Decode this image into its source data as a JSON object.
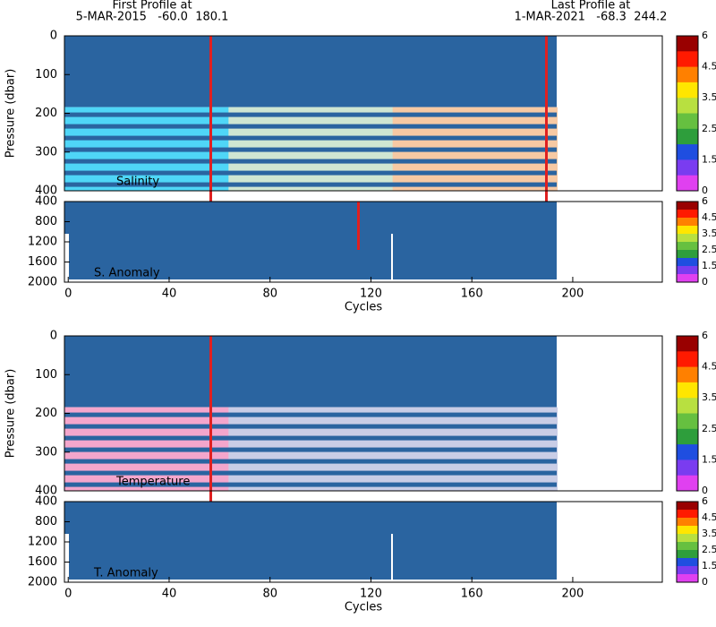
{
  "header": {
    "first_label": "First Profile at",
    "first_info": "5-MAR-2015   -60.0  180.1",
    "last_label": "Last Profile at",
    "last_info": "1-MAR-2021   -68.3  244.2"
  },
  "chart_data": [
    {
      "type": "heatmap",
      "label": "Salinity",
      "ylabel": "Pressure (dbar)",
      "xlim": [
        -1.5,
        235.5
      ],
      "ylim": [
        400,
        0
      ],
      "yticks": [
        0,
        100,
        200,
        300,
        400
      ],
      "colorbar": {
        "colors": [
          "#990000",
          "#ff1a00",
          "#ff8000",
          "#ffe600",
          "#b8e040",
          "#66c040",
          "#2e9e3c",
          "#1f4ee0",
          "#7a3cf0",
          "#e040f0"
        ],
        "ticks": [
          6,
          4.5,
          3.5,
          2.5,
          1.5,
          0
        ]
      }
    },
    {
      "type": "heatmap",
      "label": "S. Anomaly",
      "xlabel": "Cycles",
      "xlim": [
        -1.5,
        235.5
      ],
      "xticks": [
        0,
        40,
        80,
        120,
        160,
        200
      ],
      "ylim": [
        2000,
        400
      ],
      "yticks": [
        400,
        800,
        1200,
        1600,
        2000
      ],
      "colorbar": {
        "colors": [
          "#990000",
          "#ff1a00",
          "#ff8000",
          "#ffe600",
          "#b8e040",
          "#66c040",
          "#2e9e3c",
          "#1f4ee0",
          "#7a3cf0",
          "#e040f0"
        ],
        "ticks": [
          6,
          4.5,
          3.5,
          2.5,
          1.5,
          0
        ]
      }
    },
    {
      "type": "heatmap",
      "label": "Temperature",
      "ylabel": "Pressure (dbar)",
      "xlim": [
        -1.5,
        235.5
      ],
      "ylim": [
        400,
        0
      ],
      "yticks": [
        0,
        100,
        200,
        300,
        400
      ],
      "colorbar": {
        "colors": [
          "#990000",
          "#ff1a00",
          "#ff8000",
          "#ffe600",
          "#b8e040",
          "#66c040",
          "#2e9e3c",
          "#1f4ee0",
          "#7a3cf0",
          "#e040f0"
        ],
        "ticks": [
          6,
          4.5,
          3.5,
          2.5,
          1.5,
          0
        ]
      }
    },
    {
      "type": "heatmap",
      "label": "T. Anomaly",
      "xlabel": "Cycles",
      "xlim": [
        -1.5,
        235.5
      ],
      "xticks": [
        0,
        40,
        80,
        120,
        160,
        200
      ],
      "ylim": [
        2000,
        400
      ],
      "yticks": [
        400,
        800,
        1200,
        1600,
        2000
      ],
      "colorbar": {
        "colors": [
          "#990000",
          "#ff1a00",
          "#ff8000",
          "#ffe600",
          "#b8e040",
          "#66c040",
          "#2e9e3c",
          "#1f4ee0",
          "#7a3cf0",
          "#e040f0"
        ],
        "ticks": [
          6,
          4.5,
          3.5,
          2.5,
          1.5,
          0
        ]
      }
    }
  ]
}
